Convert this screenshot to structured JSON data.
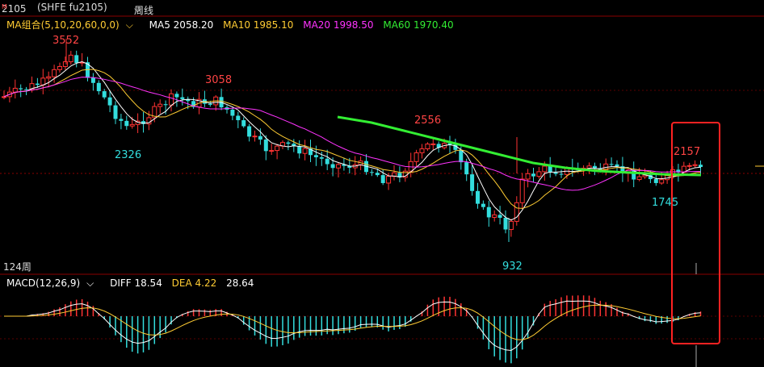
{
  "header": {
    "contract_code": "2105",
    "contract_marker": "M",
    "exchange_symbol": "(SHFE fu2105)",
    "period_label": "周线",
    "period_dropdown_icon": "chevron-down-icon"
  },
  "ma_legend": {
    "group_label": "MA组合(5,10,20,60,0,0)",
    "items": [
      {
        "label": "MA5 2058.20",
        "color": "#ffffff"
      },
      {
        "label": "MA10 1985.10",
        "color": "#ffcc33"
      },
      {
        "label": "MA20 1998.50",
        "color": "#ff33ff"
      },
      {
        "label": "MA60 1970.40",
        "color": "#33ee33"
      }
    ]
  },
  "price_labels": {
    "high_1": "3552",
    "high_2": "3058",
    "high_3": "2556",
    "high_4": "2157",
    "low_1": "2326",
    "low_2": "932",
    "low_3": "1745"
  },
  "bar_count_label": "124周",
  "macd_legend": {
    "group_label": "MACD(12,26,9)",
    "diff": "DIFF 18.54",
    "dea": "DEA 4.22",
    "macd": "28.64"
  },
  "colors": {
    "up": "#ff3333",
    "down": "#33dddd",
    "ma5": "#ffffff",
    "ma10": "#ffcc33",
    "ma20": "#ff33ff",
    "ma60": "#33ee33",
    "highlight_box": "#ff2222"
  }
}
